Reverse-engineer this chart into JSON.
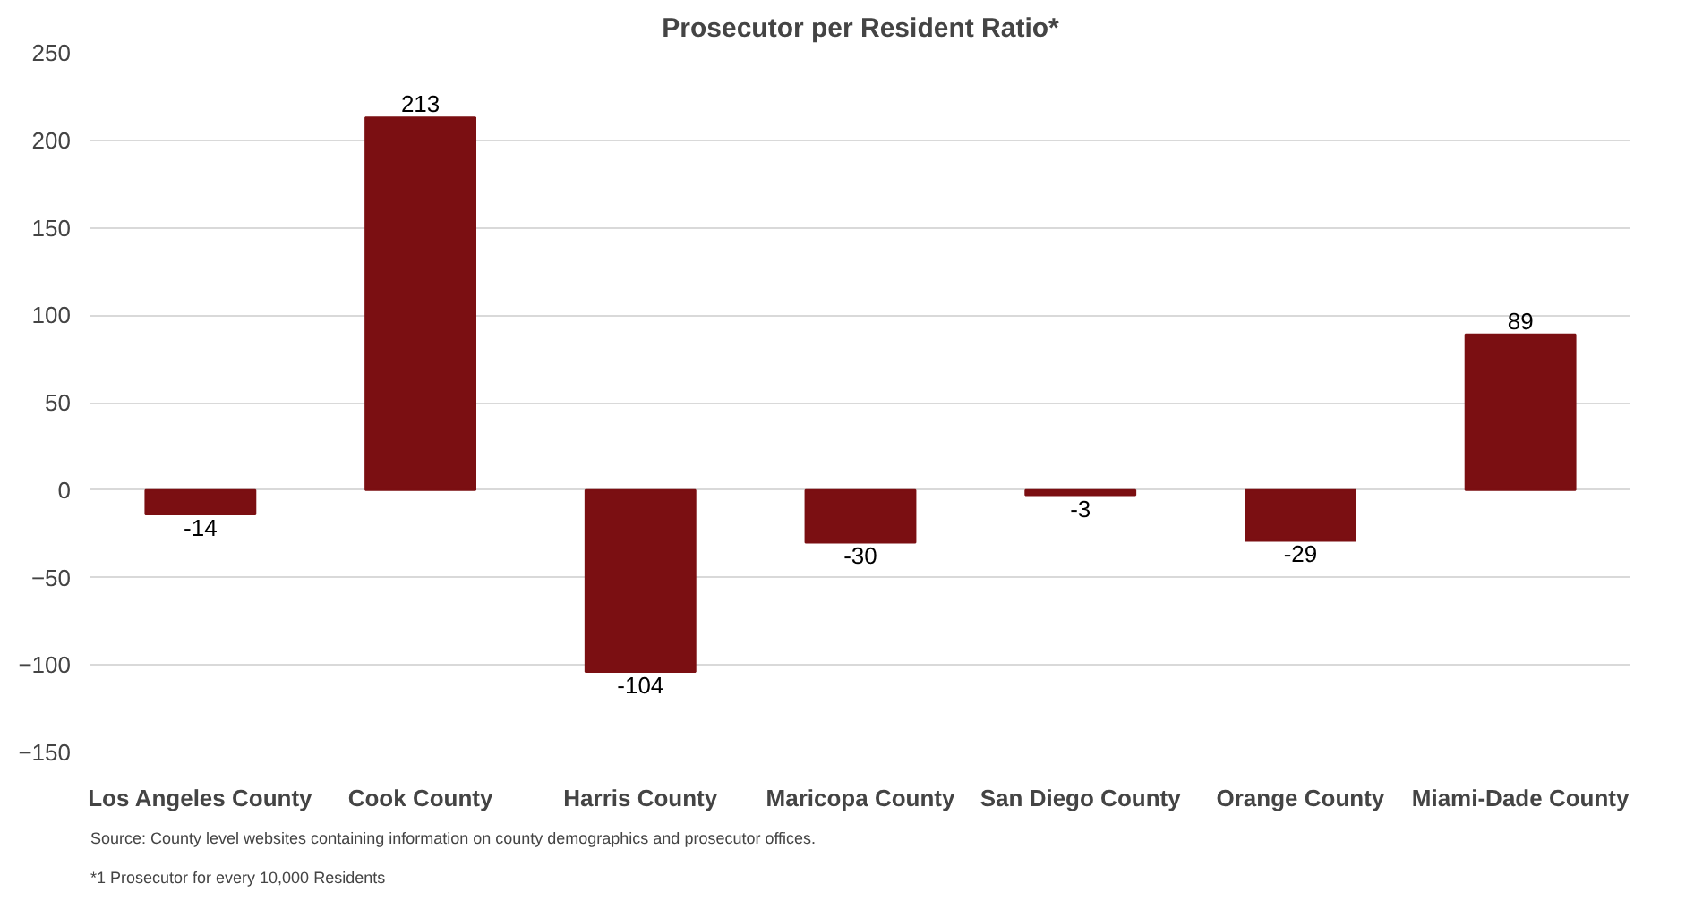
{
  "chart_data": {
    "type": "bar",
    "title": "Prosecutor per Resident Ratio*",
    "categories": [
      "Los Angeles County",
      "Cook County",
      "Harris County",
      "Maricopa County",
      "San Diego County",
      "Orange County",
      "Miami-Dade County"
    ],
    "values": [
      -14,
      213,
      -104,
      -30,
      -3,
      -29,
      89
    ],
    "color": "#7b0f12",
    "ylim": [
      -150,
      250
    ],
    "yticks": [
      -150,
      -100,
      -50,
      0,
      50,
      100,
      150,
      200,
      250
    ],
    "grid": "y",
    "data_labels": true,
    "annotations": [
      "Source: County level websites containing information on county demographics and prosecutor offices.",
      "*1 Prosecutor for every 10,000 Residents"
    ]
  }
}
